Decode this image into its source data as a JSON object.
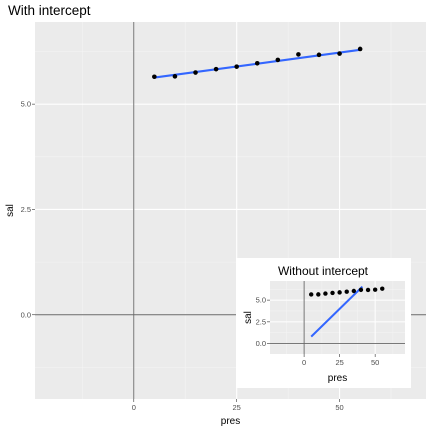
{
  "chart_data": [
    {
      "type": "scatter",
      "title": "With intercept",
      "xlabel": "pres",
      "ylabel": "sal",
      "xlim": [
        -24,
        71
      ],
      "ylim": [
        -2.0,
        6.95
      ],
      "x_ticks": [
        0,
        25,
        50
      ],
      "x_tick_labels": [
        "0",
        "25",
        "50"
      ],
      "y_ticks": [
        0.0,
        2.5,
        5.0
      ],
      "y_tick_labels": [
        "0.0",
        "2.5",
        "5.0"
      ],
      "reference_lines": {
        "vline_x": 0,
        "hline_y": 0,
        "color": "#666666"
      },
      "points": {
        "x": [
          5,
          10,
          15,
          20,
          25,
          30,
          35,
          40,
          45,
          50,
          55
        ],
        "y": [
          5.65,
          5.66,
          5.75,
          5.83,
          5.89,
          5.97,
          6.05,
          6.18,
          6.17,
          6.2,
          6.31
        ],
        "color": "#000000"
      },
      "fit_line": {
        "x": [
          5,
          55
        ],
        "y": [
          5.63,
          6.29
        ],
        "color": "#3366ff"
      },
      "grid": true,
      "panel_background": "#ebebeb"
    },
    {
      "type": "scatter",
      "title": "Without intercept",
      "xlabel": "pres",
      "ylabel": "sal",
      "xlim": [
        -24,
        71
      ],
      "ylim": [
        -1.2,
        7.2
      ],
      "x_ticks": [
        0,
        25,
        50
      ],
      "x_tick_labels": [
        "0",
        "25",
        "50"
      ],
      "y_ticks": [
        0.0,
        2.5,
        5.0
      ],
      "y_tick_labels": [
        "0.0",
        "2.5",
        "5.0"
      ],
      "reference_lines": {
        "vline_x": 0,
        "hline_y": 0,
        "color": "#666666"
      },
      "points": {
        "x": [
          5,
          10,
          15,
          20,
          25,
          30,
          35,
          40,
          45,
          50,
          55
        ],
        "y": [
          5.65,
          5.66,
          5.75,
          5.83,
          5.89,
          5.97,
          6.05,
          6.18,
          6.17,
          6.2,
          6.31
        ],
        "color": "#000000"
      },
      "fit_line": {
        "x": [
          5,
          41
        ],
        "y": [
          0.8,
          6.55
        ],
        "color": "#3366ff"
      },
      "grid": true,
      "panel_background": "#ebebeb",
      "placement": "bottom-right inset"
    }
  ]
}
